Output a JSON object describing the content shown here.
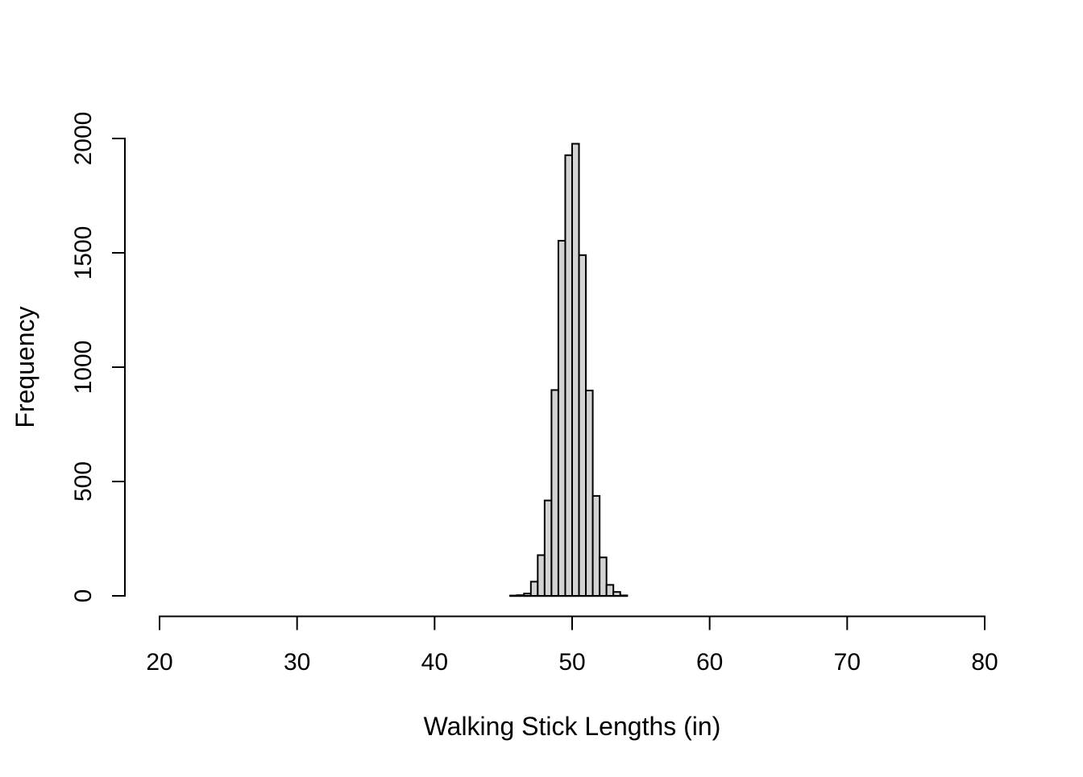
{
  "page": {
    "background_color": "#FFFFFF"
  },
  "chart_data": {
    "type": "bar",
    "subtype": "histogram",
    "title": "",
    "xlabel": "Walking Stick Lengths (in)",
    "ylabel": "Frequency",
    "bin_breaks": [
      45.5,
      46,
      46.5,
      47,
      47.5,
      48,
      48.5,
      49,
      49.5,
      50,
      50.5,
      51,
      51.5,
      52,
      52.5,
      53,
      53.5,
      54
    ],
    "counts": [
      1,
      3,
      10,
      62,
      178,
      417,
      900,
      1553,
      1927,
      1977,
      1490,
      898,
      437,
      168,
      48,
      17,
      2
    ],
    "x_ticks": [
      20,
      30,
      40,
      50,
      60,
      70,
      80
    ],
    "y_ticks": [
      0,
      500,
      1000,
      1500,
      2000
    ],
    "xlim": [
      20,
      80
    ],
    "ylim": [
      0,
      2000
    ],
    "grid": false,
    "legend": null,
    "colors": {
      "bar_fill": "#D3D3D3",
      "bar_border": "#000000",
      "axis": "#000000",
      "text": "#000000",
      "background": "#FFFFFF"
    }
  }
}
